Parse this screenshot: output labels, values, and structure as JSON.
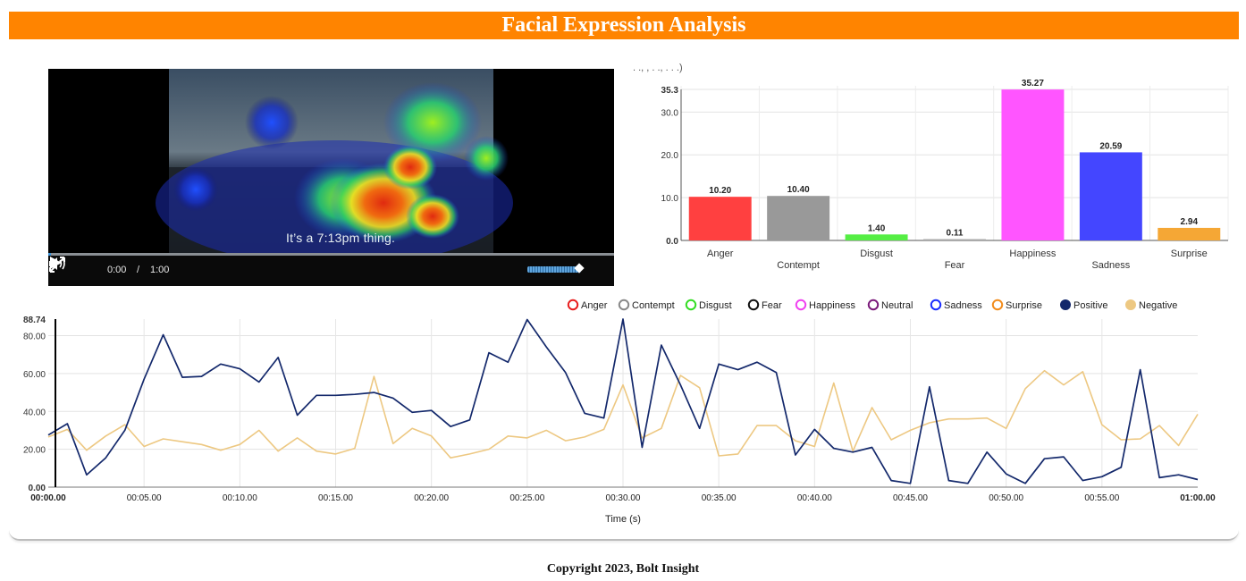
{
  "header": {
    "title": "Facial Expression Analysis"
  },
  "video": {
    "subtitle": "It’s a 7:13pm thing.",
    "current_time": "0:00",
    "separator": "/",
    "duration": "1:00",
    "progress": 0.005,
    "volume": 0.9
  },
  "bar_chart_cut_title": ". ., , . ., . . .)",
  "chart_data": [
    {
      "type": "bar",
      "categories": [
        "Anger",
        "Contempt",
        "Disgust",
        "Fear",
        "Happiness",
        "Sadness",
        "Surprise"
      ],
      "values": [
        10.2,
        10.4,
        1.4,
        0.11,
        35.27,
        20.59,
        2.94
      ],
      "value_labels": [
        "10.20",
        "10.40",
        "1.40",
        "0.11",
        "35.27",
        "20.59",
        "2.94"
      ],
      "colors": [
        "#ff4040",
        "#999999",
        "#55ee44",
        "#aaaaaa",
        "#ff55ff",
        "#4446ff",
        "#f5a735"
      ],
      "yticks": [
        "0.0",
        "10.0",
        "20.0",
        "30.0",
        "35.3"
      ],
      "ytick_values": [
        0,
        10,
        20,
        30,
        35.3
      ],
      "ylim": [
        0,
        35.3
      ],
      "grid": true
    },
    {
      "type": "line",
      "xlabel": "Time (s)",
      "xticks": [
        "00:00.00",
        "00:05.00",
        "00:10.00",
        "00:15.00",
        "00:20.00",
        "00:25.00",
        "00:30.00",
        "00:35.00",
        "00:40.00",
        "00:45.00",
        "00:50.00",
        "00:55.00",
        "01:00.00"
      ],
      "xtick_values": [
        0,
        5,
        10,
        15,
        20,
        25,
        30,
        35,
        40,
        45,
        50,
        55,
        60
      ],
      "yticks": [
        "0.00",
        "20.00",
        "40.00",
        "60.00",
        "80.00",
        "88.74"
      ],
      "ytick_values": [
        0,
        20,
        40,
        60,
        80,
        88.74
      ],
      "ylim": [
        0,
        88.74
      ],
      "xlim": [
        0,
        60
      ],
      "grid": true,
      "legend": {
        "position": "top-right",
        "items": [
          {
            "name": "Anger",
            "color": "#e81c1c",
            "style": "ring"
          },
          {
            "name": "Contempt",
            "color": "#888888",
            "style": "ring"
          },
          {
            "name": "Disgust",
            "color": "#33dd22",
            "style": "ring"
          },
          {
            "name": "Fear",
            "color": "#111111",
            "style": "ring"
          },
          {
            "name": "Happiness",
            "color": "#f040f0",
            "style": "ring"
          },
          {
            "name": "Neutral",
            "color": "#7a1a7a",
            "style": "ring"
          },
          {
            "name": "Sadness",
            "color": "#1a2cff",
            "style": "ring"
          },
          {
            "name": "Surprise",
            "color": "#f28c1c",
            "style": "ring"
          },
          {
            "name": "Positive",
            "color": "#13286b",
            "style": "filled"
          },
          {
            "name": "Negative",
            "color": "#edc882",
            "style": "filled"
          }
        ]
      },
      "series": [
        {
          "name": "Positive",
          "color": "#13286b",
          "x": [
            0,
            1,
            2,
            3,
            4,
            5,
            6,
            7,
            8,
            9,
            10,
            11,
            12,
            13,
            14,
            15,
            16,
            17,
            18,
            19,
            20,
            21,
            22,
            23,
            24,
            25,
            26,
            27,
            28,
            29,
            30,
            31,
            32,
            33,
            34,
            35,
            36,
            37,
            38,
            39,
            40,
            41,
            42,
            43,
            44,
            45,
            46,
            47,
            48,
            49,
            50,
            51,
            52,
            53,
            54,
            55,
            56,
            57,
            58,
            59,
            60
          ],
          "values": [
            27.5,
            33.5,
            6.5,
            15.5,
            30,
            57,
            80.5,
            58,
            58.5,
            65,
            62.5,
            55.5,
            68.5,
            38,
            48.5,
            48.5,
            49,
            50,
            47,
            39.5,
            40.5,
            32,
            35.5,
            71,
            66,
            88.5,
            74,
            60.5,
            39,
            36.5,
            88.74,
            21,
            75,
            54,
            31,
            65,
            62,
            66,
            60.5,
            17,
            30.5,
            20.5,
            18.5,
            21,
            3.5,
            2,
            53,
            3.5,
            2,
            18.5,
            7,
            2,
            15,
            16,
            3.5,
            5.5,
            10.5,
            62,
            5,
            6.5,
            4
          ]
        },
        {
          "name": "Negative",
          "color": "#edc882",
          "x": [
            0,
            1,
            2,
            3,
            4,
            5,
            6,
            7,
            8,
            9,
            10,
            11,
            12,
            13,
            14,
            15,
            16,
            17,
            18,
            19,
            20,
            21,
            22,
            23,
            24,
            25,
            26,
            27,
            28,
            29,
            30,
            31,
            32,
            33,
            34,
            35,
            36,
            37,
            38,
            39,
            40,
            41,
            42,
            43,
            44,
            45,
            46,
            47,
            48,
            49,
            50,
            51,
            52,
            53,
            54,
            55,
            56,
            57,
            58,
            59,
            60
          ],
          "values": [
            26.5,
            30.5,
            19.5,
            27,
            33,
            21.5,
            25.5,
            24,
            22.5,
            19.5,
            22.5,
            30,
            19,
            26,
            19,
            17.5,
            20.5,
            58.5,
            23,
            31,
            27,
            15.5,
            17.5,
            20,
            27,
            26,
            30,
            24.5,
            26.5,
            30.5,
            54,
            26,
            31,
            59,
            52.5,
            16.5,
            17.5,
            32.5,
            32.5,
            24.5,
            21.5,
            55,
            19,
            42,
            25,
            30,
            34,
            36,
            36,
            36.5,
            31,
            52,
            61.5,
            54,
            61,
            33,
            25,
            25.5,
            32.5,
            22,
            38.5
          ]
        }
      ]
    }
  ],
  "footer": {
    "text": "Copyright 2023, Bolt Insight"
  }
}
